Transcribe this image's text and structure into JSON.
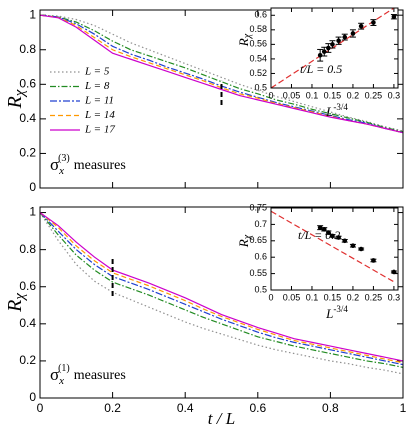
{
  "chart_data": [
    {
      "type": "line",
      "ylabel": {
        "base": "R",
        "sub": "χ"
      },
      "annotation": {
        "symbol": "σ",
        "sub": "x",
        "sup": "(3)",
        "text": "measures"
      },
      "xlim": [
        0,
        1
      ],
      "ylim": [
        0,
        1.03
      ],
      "xticks": [
        0,
        0.2,
        0.4,
        0.6,
        0.8,
        1
      ],
      "xtick_labels": false,
      "yticks": [
        0,
        0.2,
        0.4,
        0.6,
        0.8,
        1
      ],
      "legend": "left",
      "marker": {
        "x": 0.5,
        "y": [
          0.48,
          0.62
        ]
      },
      "x": [
        0,
        0.05,
        0.1,
        0.15,
        0.2,
        0.25,
        0.3,
        0.35,
        0.4,
        0.45,
        0.5,
        0.55,
        0.6,
        0.65,
        0.7,
        0.75,
        0.8,
        0.85,
        0.9,
        0.95,
        1
      ],
      "series": [
        {
          "name": "L = 5",
          "color": "#909090",
          "dash": "1.5,2.5",
          "values": [
            1,
            0.995,
            0.975,
            0.94,
            0.89,
            0.84,
            0.8,
            0.76,
            0.72,
            0.68,
            0.64,
            0.6,
            0.565,
            0.53,
            0.5,
            0.47,
            0.44,
            0.41,
            0.385,
            0.355,
            0.33
          ]
        },
        {
          "name": "L = 8",
          "color": "#228b22",
          "dash": "6,2,1.5,2",
          "values": [
            1,
            0.99,
            0.96,
            0.91,
            0.85,
            0.8,
            0.765,
            0.73,
            0.695,
            0.655,
            0.615,
            0.575,
            0.545,
            0.51,
            0.485,
            0.455,
            0.43,
            0.405,
            0.38,
            0.35,
            0.325
          ]
        },
        {
          "name": "L = 11",
          "color": "#2040d0",
          "dash": "7,2,2,2",
          "values": [
            1,
            0.99,
            0.95,
            0.89,
            0.82,
            0.775,
            0.74,
            0.7,
            0.665,
            0.63,
            0.59,
            0.555,
            0.525,
            0.495,
            0.47,
            0.445,
            0.42,
            0.395,
            0.375,
            0.345,
            0.32
          ]
        },
        {
          "name": "L = 14",
          "color": "#ff9900",
          "dash": "5,3",
          "values": [
            1,
            0.987,
            0.94,
            0.87,
            0.8,
            0.76,
            0.725,
            0.69,
            0.655,
            0.62,
            0.58,
            0.545,
            0.52,
            0.49,
            0.465,
            0.44,
            0.415,
            0.39,
            0.37,
            0.345,
            0.32
          ]
        },
        {
          "name": "L = 17",
          "color": "#cc00cc",
          "dash": "none",
          "values": [
            1,
            0.985,
            0.93,
            0.855,
            0.78,
            0.745,
            0.71,
            0.675,
            0.64,
            0.605,
            0.57,
            0.535,
            0.51,
            0.485,
            0.46,
            0.435,
            0.41,
            0.39,
            0.37,
            0.345,
            0.32
          ]
        }
      ]
    },
    {
      "type": "scatter",
      "ylabel": {
        "base": "R",
        "sub": "χ"
      },
      "xlabel": {
        "base": "L",
        "sup": "-3/4"
      },
      "annotation": "t/L = 0.5",
      "xlim": [
        0,
        0.31
      ],
      "ylim": [
        0.5,
        0.61
      ],
      "xticks": [
        0,
        0.05,
        0.1,
        0.15,
        0.2,
        0.25,
        0.3
      ],
      "yticks": [
        0.5,
        0.52,
        0.54,
        0.56,
        0.58,
        0.6
      ],
      "series": [
        {
          "color": "#000000",
          "x": [
            0.12,
            0.13,
            0.14,
            0.15,
            0.165,
            0.18,
            0.2,
            0.22,
            0.25,
            0.3
          ],
          "values": [
            0.545,
            0.55,
            0.555,
            0.56,
            0.565,
            0.57,
            0.575,
            0.585,
            0.59,
            0.598
          ],
          "errors": [
            0.008,
            0.006,
            0.006,
            0.005,
            0.005,
            0.004,
            0.005,
            0.004,
            0.004,
            0.003
          ]
        }
      ],
      "fit": {
        "color": "#e03030",
        "x": [
          0,
          0.3
        ],
        "values": [
          0.5,
          0.61
        ]
      }
    },
    {
      "type": "line",
      "ylabel": {
        "base": "R",
        "sub": "χ"
      },
      "xlabel": "t / L",
      "annotation": {
        "symbol": "σ",
        "sub": "x",
        "sup": "(1)",
        "text": "measures"
      },
      "xlim": [
        0,
        1
      ],
      "ylim": [
        0,
        1.03
      ],
      "xticks": [
        0,
        0.2,
        0.4,
        0.6,
        0.8,
        1
      ],
      "xtick_labels": true,
      "yticks": [
        0,
        0.2,
        0.4,
        0.6,
        0.8,
        1
      ],
      "marker": {
        "x": 0.2,
        "y": [
          0.55,
          0.75
        ]
      },
      "x": [
        0,
        0.05,
        0.1,
        0.15,
        0.2,
        0.25,
        0.3,
        0.35,
        0.4,
        0.45,
        0.5,
        0.55,
        0.6,
        0.65,
        0.7,
        0.75,
        0.8,
        0.85,
        0.9,
        0.95,
        1
      ],
      "series": [
        {
          "color": "#909090",
          "dash": "1.5,2.5",
          "values": [
            1,
            0.85,
            0.72,
            0.63,
            0.57,
            0.53,
            0.49,
            0.45,
            0.41,
            0.375,
            0.345,
            0.315,
            0.285,
            0.26,
            0.24,
            0.22,
            0.2,
            0.185,
            0.165,
            0.15,
            0.13
          ]
        },
        {
          "color": "#228b22",
          "dash": "6,2,1.5,2",
          "values": [
            1,
            0.88,
            0.77,
            0.69,
            0.625,
            0.59,
            0.555,
            0.515,
            0.475,
            0.435,
            0.4,
            0.365,
            0.33,
            0.305,
            0.28,
            0.26,
            0.24,
            0.22,
            0.2,
            0.185,
            0.165
          ]
        },
        {
          "color": "#2040d0",
          "dash": "7,2,2,2",
          "values": [
            1,
            0.9,
            0.8,
            0.72,
            0.655,
            0.62,
            0.585,
            0.545,
            0.505,
            0.465,
            0.425,
            0.39,
            0.355,
            0.325,
            0.3,
            0.28,
            0.26,
            0.24,
            0.22,
            0.2,
            0.18
          ]
        },
        {
          "color": "#ff9900",
          "dash": "5,3",
          "values": [
            1,
            0.92,
            0.82,
            0.74,
            0.675,
            0.64,
            0.605,
            0.565,
            0.525,
            0.48,
            0.44,
            0.405,
            0.37,
            0.34,
            0.31,
            0.29,
            0.27,
            0.25,
            0.23,
            0.21,
            0.19
          ]
        },
        {
          "color": "#cc00cc",
          "dash": "none",
          "values": [
            1,
            0.93,
            0.84,
            0.76,
            0.69,
            0.655,
            0.62,
            0.58,
            0.54,
            0.495,
            0.45,
            0.415,
            0.38,
            0.35,
            0.32,
            0.3,
            0.28,
            0.26,
            0.24,
            0.22,
            0.2
          ]
        }
      ]
    },
    {
      "type": "scatter",
      "ylabel": {
        "base": "R",
        "sub": "χ"
      },
      "xlabel": {
        "base": "L",
        "sup": "-3/4"
      },
      "annotation": "t/L = 0.2",
      "xlim": [
        0,
        0.31
      ],
      "ylim": [
        0.5,
        0.75
      ],
      "xticks": [
        0,
        0.05,
        0.1,
        0.15,
        0.2,
        0.25,
        0.3
      ],
      "yticks": [
        0.5,
        0.55,
        0.6,
        0.65,
        0.7,
        0.75
      ],
      "series": [
        {
          "color": "#000000",
          "x": [
            0.12,
            0.13,
            0.14,
            0.15,
            0.165,
            0.18,
            0.2,
            0.22,
            0.25,
            0.3
          ],
          "values": [
            0.69,
            0.685,
            0.675,
            0.665,
            0.66,
            0.65,
            0.635,
            0.625,
            0.59,
            0.555
          ],
          "errors": [
            0.006,
            0.005,
            0.005,
            0.004,
            0.004,
            0.004,
            0.004,
            0.003,
            0.004,
            0.003
          ]
        }
      ],
      "fit": {
        "color": "#e03030",
        "x": [
          0,
          0.3
        ],
        "values": [
          0.74,
          0.525
        ]
      }
    }
  ]
}
